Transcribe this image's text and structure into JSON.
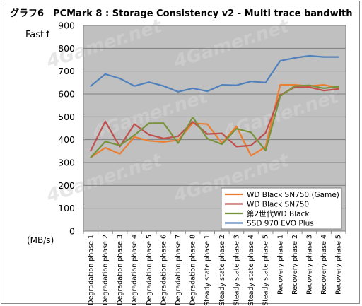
{
  "chart_data": {
    "type": "line",
    "title": "グラフ6　PCMark 8 : Storage Consistency v2 - Multi trace bandwith",
    "fast_label": "Fast↑",
    "ylabel": "(MB/s)",
    "ylim": [
      0,
      900
    ],
    "yticks": [
      0,
      100,
      200,
      300,
      400,
      500,
      600,
      700,
      800,
      900
    ],
    "grid": true,
    "legend": "bottom-right",
    "categories": [
      "Degradation phase 1",
      "Degradation phase 2",
      "Degradation phase 3",
      "Degradation phase 4",
      "Degradation phase 5",
      "Degradation phase 6",
      "Degradation phase 7",
      "Degradation phase 8",
      "Steady state phase 1",
      "Steady state phase 2",
      "Steady state phase 3",
      "Steady state phase 4",
      "Steady state phase 5",
      "Recovery phase 1",
      "Recovery phase 2",
      "Recovery phase 3",
      "Recovery phase 4",
      "Recovery phase 5"
    ],
    "series": [
      {
        "name": "WD Black SN750 (Game)",
        "color": "#ed7d31",
        "values": [
          322,
          365,
          338,
          412,
          395,
          390,
          398,
          472,
          468,
          385,
          458,
          330,
          368,
          640,
          640,
          635,
          640,
          626
        ]
      },
      {
        "name": "WD Black SN750",
        "color": "#c0504d",
        "values": [
          352,
          480,
          370,
          468,
          422,
          405,
          415,
          478,
          425,
          428,
          370,
          375,
          430,
          595,
          630,
          630,
          615,
          622
        ]
      },
      {
        "name": "第2世代WD Black",
        "color": "#77933c",
        "values": [
          322,
          392,
          375,
          420,
          472,
          472,
          385,
          498,
          405,
          380,
          448,
          432,
          353,
          590,
          635,
          638,
          625,
          632
        ]
      },
      {
        "name": "SSD 970 EVO Plus",
        "color": "#4f81bd",
        "values": [
          635,
          687,
          668,
          635,
          652,
          635,
          610,
          625,
          612,
          640,
          638,
          655,
          650,
          745,
          758,
          767,
          762,
          762
        ]
      }
    ]
  },
  "colors": {
    "plot_background": "#c0c0c0",
    "gridline": "#7f7f7f",
    "watermark": "#d3d3d3"
  },
  "watermark_text": "4Gamer.net"
}
